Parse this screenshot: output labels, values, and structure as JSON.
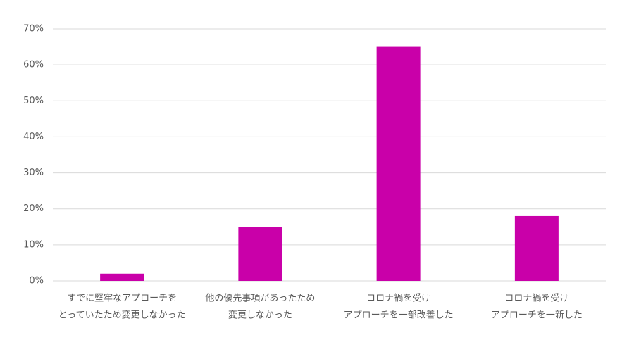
{
  "chart_data": {
    "type": "bar",
    "categories": [
      [
        "すでに堅牢なアプローチを",
        "とっていたため変更しなかった"
      ],
      [
        "他の優先事項があったため",
        "変更しなかった"
      ],
      [
        "コロナ禍を受け",
        "アプローチを一部改善した"
      ],
      [
        "コロナ禍を受け",
        "アプローチを一新した"
      ]
    ],
    "values": [
      2,
      15,
      65,
      18
    ],
    "color": "#c900a9",
    "ylim": [
      0,
      70
    ],
    "yticks": [
      {
        "value": 0,
        "label": "0%"
      },
      {
        "value": 10,
        "label": "10%"
      },
      {
        "value": 20,
        "label": "20%"
      },
      {
        "value": 30,
        "label": "30%"
      },
      {
        "value": 40,
        "label": "40%"
      },
      {
        "value": 50,
        "label": "50%"
      },
      {
        "value": 60,
        "label": "60%"
      },
      {
        "value": 70,
        "label": "70%"
      }
    ],
    "grid": true
  }
}
